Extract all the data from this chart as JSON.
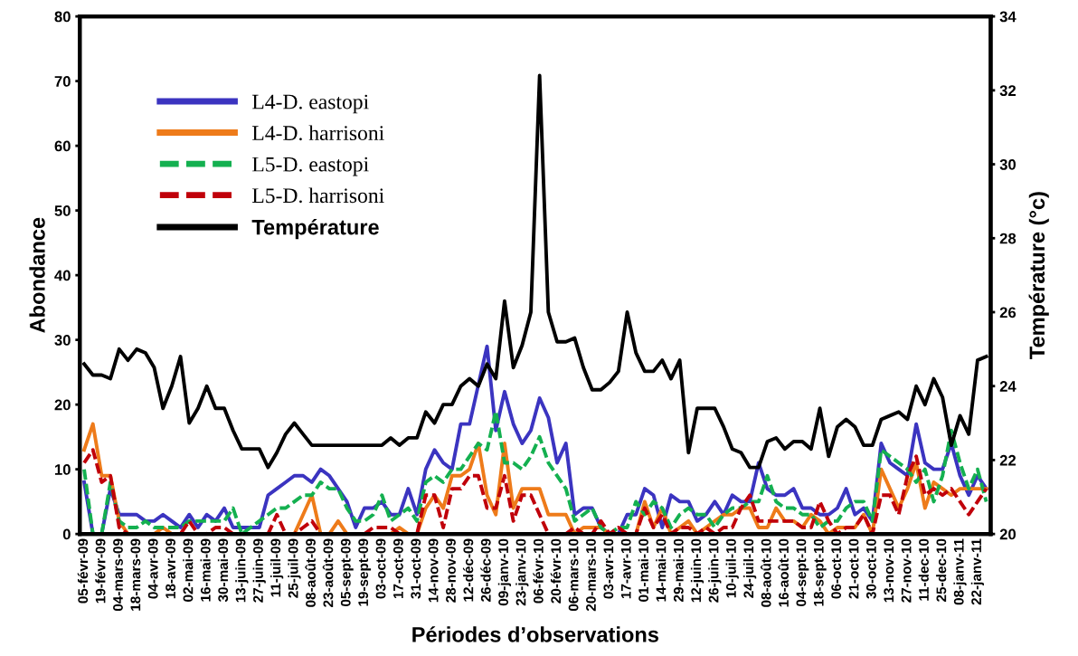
{
  "chart_data": {
    "type": "line",
    "xlabel": "Périodes d’observations",
    "ylabel": "Abondance",
    "y2label": "Température (°c)",
    "categories": [
      "05-févr-09",
      null,
      "19-févr-09",
      null,
      "04-mars-09",
      null,
      "18-mars-09",
      null,
      "04-avr-09",
      null,
      "18-avr-09",
      null,
      "02-mai-09",
      null,
      "16-mai-09",
      null,
      "30-mai-09",
      null,
      "13-juin-09",
      null,
      "27-juin-09",
      null,
      "11-juil-09",
      null,
      "25-juil-09",
      null,
      "08-août-09",
      null,
      "23-août-09",
      null,
      "05-sept-09",
      null,
      "19-sept-09",
      null,
      "03-oct-09",
      null,
      "17-oct-09",
      null,
      "31-oct-09",
      null,
      "14-nov-09",
      null,
      "28-nov-09",
      null,
      "12-déc-09",
      null,
      "26-déc-09",
      null,
      "09-janv-10",
      null,
      "23-janv-10",
      null,
      "06-févr-10",
      null,
      "20-févr-10",
      null,
      "06-mars-10",
      null,
      "20-mars-10",
      null,
      "03-avr-10",
      null,
      "17-avr-10",
      null,
      "01-mai-10",
      null,
      "14-mai-10",
      null,
      "29-mai-10",
      null,
      "12-juin-10",
      null,
      "26-juin-10",
      null,
      "10-juil-10",
      null,
      "24-juil-10",
      null,
      "08-août-10",
      null,
      "16-août-10",
      null,
      "04-sept-10",
      null,
      "18-sept-10",
      null,
      "06-oct-10",
      null,
      "21-oct-10",
      null,
      "30-oct-10",
      null,
      "13-nov-10",
      null,
      "27-nov-10",
      null,
      "11-dec-10",
      null,
      "25-dec-10",
      null,
      "08-janv-11",
      null,
      "22-janv-11",
      null
    ],
    "ylim": [
      0,
      80
    ],
    "yticks": [
      0,
      10,
      20,
      30,
      40,
      50,
      60,
      70,
      80
    ],
    "y2lim": [
      20,
      34
    ],
    "y2ticks": [
      20,
      22,
      24,
      26,
      28,
      30,
      32,
      34
    ],
    "grid": false,
    "legend": "top left",
    "marker": "none",
    "series": [
      {
        "name": "L4-D. eastopi",
        "color": "#3b34c0",
        "line_style": "solid",
        "values": [
          8,
          0,
          0,
          7,
          3,
          3,
          3,
          2,
          2,
          3,
          2,
          1,
          3,
          1,
          3,
          2,
          4,
          1,
          1,
          1,
          1,
          6,
          7,
          8,
          9,
          9,
          8,
          10,
          9,
          7,
          5,
          1,
          4,
          4,
          5,
          3,
          3,
          7,
          3,
          10,
          13,
          11,
          10,
          17,
          17,
          23,
          29,
          16,
          22,
          17,
          14,
          16,
          21,
          18,
          11,
          14,
          3,
          4,
          4,
          1,
          0,
          0,
          3,
          3,
          7,
          6,
          1,
          6,
          5,
          5,
          2,
          3,
          5,
          3,
          6,
          5,
          5,
          11,
          7,
          6,
          6,
          7,
          4,
          4,
          3,
          3,
          4,
          7,
          3,
          4,
          2,
          14,
          11,
          10,
          9,
          17,
          11,
          10,
          10,
          14,
          9,
          6,
          9,
          7
        ]
      },
      {
        "name": "L4-D. harrisoni",
        "color": "#ee7b1a",
        "line_style": "solid",
        "values": [
          13,
          17,
          9,
          9,
          2,
          0,
          0,
          0,
          0,
          1,
          0,
          0,
          0,
          0,
          0,
          0,
          0,
          0,
          0,
          0,
          0,
          0,
          0,
          0,
          0,
          3,
          6,
          0,
          0,
          2,
          0,
          0,
          0,
          0,
          0,
          0,
          1,
          0,
          0,
          4,
          6,
          4,
          9,
          9,
          10,
          14,
          6,
          3,
          14,
          4,
          7,
          7,
          7,
          3,
          3,
          3,
          0,
          1,
          1,
          1,
          0,
          0,
          0,
          0,
          5,
          1,
          4,
          0,
          1,
          2,
          0,
          1,
          2,
          3,
          3,
          4,
          4,
          1,
          1,
          4,
          2,
          2,
          1,
          3,
          2,
          0,
          1,
          1,
          1,
          3,
          0,
          10,
          7,
          4,
          7,
          11,
          4,
          8,
          7,
          6,
          7,
          7,
          7,
          7
        ]
      },
      {
        "name": "L5-D. eastopi",
        "color": "#14b050",
        "line_style": "dashed",
        "values": [
          10,
          0,
          0,
          8,
          2,
          1,
          1,
          2,
          1,
          1,
          1,
          1,
          2,
          2,
          2,
          2,
          2,
          4,
          0,
          1,
          2,
          3,
          4,
          4,
          5,
          6,
          6,
          8,
          7,
          7,
          4,
          2,
          2,
          3,
          6,
          2,
          3,
          4,
          2,
          8,
          9,
          8,
          10,
          10,
          12,
          14,
          13,
          19,
          11,
          11,
          10,
          12,
          15,
          11,
          9,
          7,
          2,
          3,
          4,
          1,
          0,
          1,
          1,
          5,
          3,
          5,
          4,
          1,
          3,
          4,
          3,
          3,
          1,
          3,
          4,
          4,
          5,
          5,
          9,
          5,
          4,
          4,
          3,
          3,
          1,
          2,
          2,
          4,
          5,
          5,
          2,
          13,
          12,
          11,
          10,
          8,
          10,
          5,
          9,
          16,
          11,
          7,
          10,
          5
        ]
      },
      {
        "name": "L5-D. harrisoni",
        "color": "#c0000a",
        "line_style": "dashed",
        "values": [
          11,
          13,
          8,
          9,
          1,
          0,
          0,
          0,
          0,
          0,
          0,
          0,
          2,
          0,
          0,
          1,
          1,
          0,
          0,
          0,
          0,
          0,
          3,
          0,
          0,
          1,
          2,
          0,
          0,
          0,
          0,
          0,
          0,
          1,
          1,
          1,
          0,
          0,
          0,
          6,
          6,
          1,
          7,
          7,
          9,
          9,
          4,
          4,
          9,
          2,
          6,
          6,
          3,
          0,
          0,
          0,
          1,
          0,
          0,
          2,
          0,
          1,
          0,
          0,
          4,
          1,
          3,
          0,
          1,
          1,
          0,
          1,
          0,
          1,
          1,
          4,
          6,
          2,
          2,
          2,
          2,
          2,
          1,
          1,
          5,
          2,
          0,
          1,
          1,
          3,
          0,
          6,
          6,
          3,
          9,
          12,
          6,
          7,
          6,
          7,
          5,
          3,
          5,
          7
        ]
      },
      {
        "name": "Température",
        "color": "#000000",
        "line_style": "solid",
        "axis": "y2",
        "values": [
          24.6,
          24.3,
          24.3,
          24.2,
          25.0,
          24.7,
          25.0,
          24.9,
          24.5,
          23.4,
          24.0,
          24.8,
          23.0,
          23.4,
          24.0,
          23.4,
          23.4,
          22.8,
          22.3,
          22.3,
          22.3,
          21.8,
          22.2,
          22.7,
          23.0,
          22.7,
          22.4,
          22.4,
          22.4,
          22.4,
          22.4,
          22.4,
          22.4,
          22.4,
          22.4,
          22.6,
          22.4,
          22.6,
          22.6,
          23.3,
          23.0,
          23.5,
          23.5,
          24.0,
          24.2,
          24.0,
          24.6,
          24.2,
          26.3,
          24.5,
          25.1,
          26.0,
          32.4,
          26.0,
          25.2,
          25.2,
          25.3,
          24.5,
          23.9,
          23.9,
          24.1,
          24.4,
          26.0,
          24.9,
          24.4,
          24.4,
          24.7,
          24.2,
          24.7,
          22.2,
          23.4,
          23.4,
          23.4,
          22.9,
          22.3,
          22.2,
          21.8,
          21.8,
          22.5,
          22.6,
          22.3,
          22.5,
          22.5,
          22.3,
          23.4,
          22.1,
          22.9,
          23.1,
          22.9,
          22.4,
          22.4,
          23.1,
          23.2,
          23.3,
          23.1,
          24.0,
          23.5,
          24.2,
          23.7,
          22.4,
          23.2,
          22.7,
          24.7,
          24.8
        ]
      }
    ]
  }
}
